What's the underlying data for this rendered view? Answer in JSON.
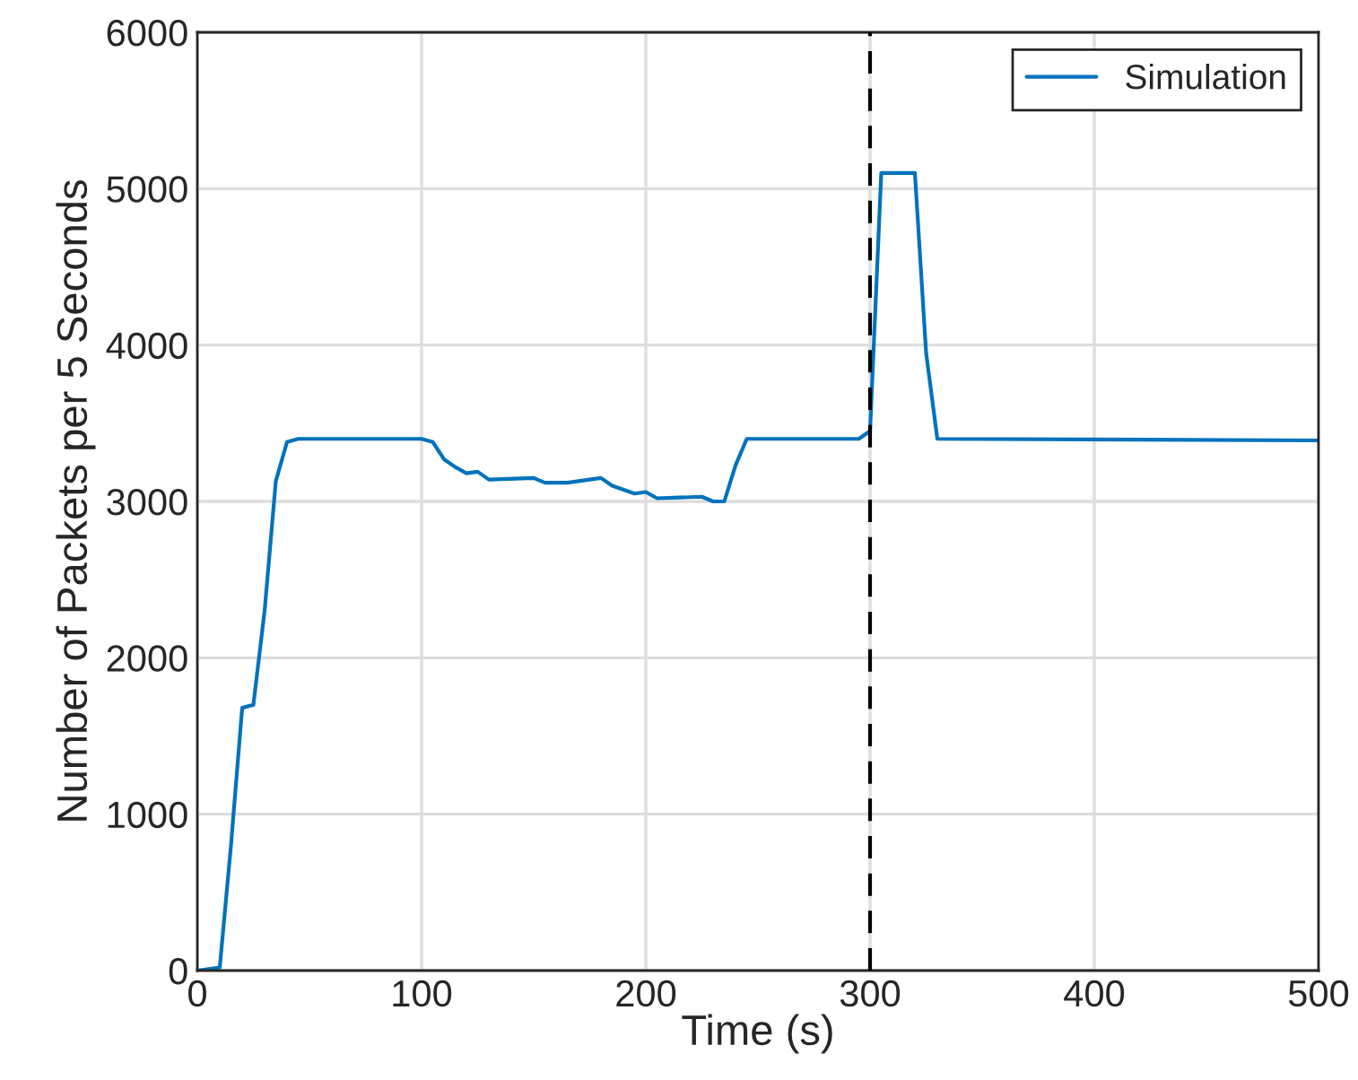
{
  "chart_data": {
    "type": "line",
    "xlabel": "Time (s)",
    "ylabel": "Number of Packets per 5 Seconds",
    "series": [
      {
        "name": "Simulation",
        "color": "#0072bd",
        "x": [
          0,
          10,
          15,
          20,
          25,
          30,
          35,
          40,
          45,
          100,
          105,
          110,
          115,
          120,
          125,
          130,
          150,
          155,
          165,
          180,
          185,
          195,
          200,
          205,
          225,
          230,
          235,
          240,
          245,
          295,
          300,
          305,
          320,
          325,
          330,
          500
        ],
        "values": [
          0,
          20,
          800,
          1680,
          1700,
          2300,
          3130,
          3380,
          3400,
          3400,
          3380,
          3270,
          3220,
          3180,
          3190,
          3140,
          3150,
          3120,
          3120,
          3150,
          3100,
          3050,
          3060,
          3020,
          3030,
          3000,
          3000,
          3230,
          3400,
          3400,
          3450,
          5100,
          5100,
          3950,
          3400,
          3390
        ]
      }
    ],
    "xlim": [
      0,
      500
    ],
    "xticks": [
      0,
      100,
      200,
      300,
      400,
      500
    ],
    "ylim": [
      0,
      6000
    ],
    "yticks": [
      0,
      1000,
      2000,
      3000,
      4000,
      5000,
      6000
    ],
    "ref_lines": [
      {
        "axis": "x",
        "value": 300,
        "color": "#000000",
        "line_style": "dashed"
      }
    ],
    "grid": true,
    "legend": "top right",
    "line_style": "solid",
    "marker": "none"
  }
}
